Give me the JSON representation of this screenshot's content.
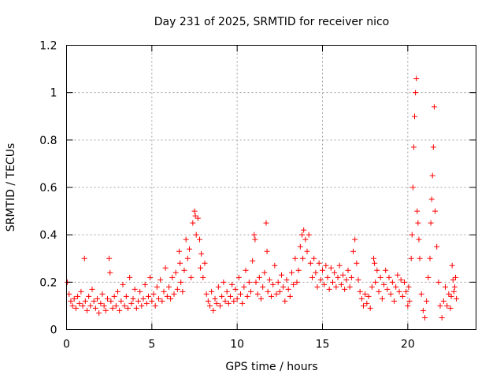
{
  "chart_data": {
    "type": "scatter",
    "title": "Day 231 of 2025, SRMTID for receiver nico",
    "xlabel": "GPS time / hours",
    "ylabel": "SRMTID / TECUs",
    "xlim": [
      0,
      24
    ],
    "ylim": [
      0,
      1.2
    ],
    "xticks": [
      0,
      5,
      10,
      15,
      20
    ],
    "yticks": [
      0,
      0.2,
      0.4,
      0.6,
      0.8,
      1,
      1.2
    ],
    "xtick_labels": [
      "0",
      "5",
      "10",
      "15",
      "20"
    ],
    "ytick_labels": [
      "0",
      "0.2",
      "0.4",
      "0.6",
      "0.8",
      "1",
      "1.2"
    ],
    "grid": true,
    "marker": "plus",
    "color": "#ff0000",
    "series": [
      {
        "name": "SRMTID",
        "points": [
          [
            0.05,
            0.2
          ],
          [
            0.15,
            0.15
          ],
          [
            0.25,
            0.12
          ],
          [
            0.35,
            0.1
          ],
          [
            0.45,
            0.13
          ],
          [
            0.55,
            0.09
          ],
          [
            0.65,
            0.14
          ],
          [
            0.75,
            0.11
          ],
          [
            0.85,
            0.16
          ],
          [
            0.95,
            0.1
          ],
          [
            1.05,
            0.3
          ],
          [
            1.1,
            0.12
          ],
          [
            1.2,
            0.08
          ],
          [
            1.3,
            0.14
          ],
          [
            1.4,
            0.1
          ],
          [
            1.5,
            0.17
          ],
          [
            1.6,
            0.12
          ],
          [
            1.7,
            0.09
          ],
          [
            1.8,
            0.13
          ],
          [
            1.9,
            0.07
          ],
          [
            2.0,
            0.11
          ],
          [
            2.1,
            0.15
          ],
          [
            2.2,
            0.1
          ],
          [
            2.3,
            0.08
          ],
          [
            2.4,
            0.13
          ],
          [
            2.5,
            0.3
          ],
          [
            2.55,
            0.24
          ],
          [
            2.6,
            0.12
          ],
          [
            2.7,
            0.09
          ],
          [
            2.8,
            0.14
          ],
          [
            2.9,
            0.1
          ],
          [
            3.0,
            0.16
          ],
          [
            3.1,
            0.08
          ],
          [
            3.2,
            0.12
          ],
          [
            3.3,
            0.19
          ],
          [
            3.4,
            0.1
          ],
          [
            3.5,
            0.14
          ],
          [
            3.6,
            0.09
          ],
          [
            3.7,
            0.22
          ],
          [
            3.8,
            0.11
          ],
          [
            3.9,
            0.13
          ],
          [
            4.0,
            0.17
          ],
          [
            4.1,
            0.09
          ],
          [
            4.2,
            0.12
          ],
          [
            4.3,
            0.16
          ],
          [
            4.4,
            0.1
          ],
          [
            4.5,
            0.13
          ],
          [
            4.6,
            0.19
          ],
          [
            4.7,
            0.11
          ],
          [
            4.8,
            0.14
          ],
          [
            4.9,
            0.22
          ],
          [
            5.0,
            0.12
          ],
          [
            5.1,
            0.15
          ],
          [
            5.2,
            0.1
          ],
          [
            5.3,
            0.18
          ],
          [
            5.4,
            0.13
          ],
          [
            5.5,
            0.21
          ],
          [
            5.6,
            0.12
          ],
          [
            5.7,
            0.16
          ],
          [
            5.8,
            0.26
          ],
          [
            5.9,
            0.14
          ],
          [
            6.0,
            0.18
          ],
          [
            6.1,
            0.13
          ],
          [
            6.2,
            0.22
          ],
          [
            6.3,
            0.15
          ],
          [
            6.4,
            0.24
          ],
          [
            6.5,
            0.17
          ],
          [
            6.6,
            0.33
          ],
          [
            6.65,
            0.28
          ],
          [
            6.7,
            0.2
          ],
          [
            6.8,
            0.16
          ],
          [
            6.9,
            0.25
          ],
          [
            7.0,
            0.38
          ],
          [
            7.1,
            0.3
          ],
          [
            7.2,
            0.34
          ],
          [
            7.3,
            0.22
          ],
          [
            7.4,
            0.45
          ],
          [
            7.5,
            0.5
          ],
          [
            7.55,
            0.48
          ],
          [
            7.6,
            0.4
          ],
          [
            7.7,
            0.47
          ],
          [
            7.8,
            0.38
          ],
          [
            7.85,
            0.26
          ],
          [
            7.9,
            0.32
          ],
          [
            8.0,
            0.22
          ],
          [
            8.1,
            0.28
          ],
          [
            8.2,
            0.15
          ],
          [
            8.3,
            0.12
          ],
          [
            8.4,
            0.1
          ],
          [
            8.5,
            0.16
          ],
          [
            8.6,
            0.08
          ],
          [
            8.7,
            0.13
          ],
          [
            8.8,
            0.11
          ],
          [
            8.9,
            0.18
          ],
          [
            9.0,
            0.1
          ],
          [
            9.1,
            0.14
          ],
          [
            9.2,
            0.2
          ],
          [
            9.3,
            0.12
          ],
          [
            9.4,
            0.16
          ],
          [
            9.5,
            0.11
          ],
          [
            9.6,
            0.14
          ],
          [
            9.7,
            0.19
          ],
          [
            9.8,
            0.12
          ],
          [
            9.9,
            0.17
          ],
          [
            10.0,
            0.13
          ],
          [
            10.1,
            0.22
          ],
          [
            10.2,
            0.15
          ],
          [
            10.3,
            0.11
          ],
          [
            10.4,
            0.18
          ],
          [
            10.5,
            0.25
          ],
          [
            10.6,
            0.14
          ],
          [
            10.7,
            0.2
          ],
          [
            10.8,
            0.16
          ],
          [
            10.9,
            0.29
          ],
          [
            11.0,
            0.4
          ],
          [
            11.05,
            0.38
          ],
          [
            11.1,
            0.2
          ],
          [
            11.2,
            0.15
          ],
          [
            11.3,
            0.22
          ],
          [
            11.4,
            0.13
          ],
          [
            11.5,
            0.18
          ],
          [
            11.6,
            0.24
          ],
          [
            11.7,
            0.45
          ],
          [
            11.75,
            0.33
          ],
          [
            11.8,
            0.16
          ],
          [
            11.9,
            0.21
          ],
          [
            12.0,
            0.14
          ],
          [
            12.1,
            0.19
          ],
          [
            12.2,
            0.27
          ],
          [
            12.3,
            0.15
          ],
          [
            12.4,
            0.2
          ],
          [
            12.5,
            0.16
          ],
          [
            12.6,
            0.23
          ],
          [
            12.7,
            0.18
          ],
          [
            12.8,
            0.12
          ],
          [
            12.9,
            0.21
          ],
          [
            13.0,
            0.17
          ],
          [
            13.1,
            0.14
          ],
          [
            13.2,
            0.24
          ],
          [
            13.3,
            0.19
          ],
          [
            13.4,
            0.3
          ],
          [
            13.5,
            0.2
          ],
          [
            13.6,
            0.25
          ],
          [
            13.7,
            0.35
          ],
          [
            13.8,
            0.4
          ],
          [
            13.85,
            0.3
          ],
          [
            13.9,
            0.42
          ],
          [
            14.0,
            0.38
          ],
          [
            14.1,
            0.33
          ],
          [
            14.2,
            0.4
          ],
          [
            14.3,
            0.28
          ],
          [
            14.4,
            0.22
          ],
          [
            14.5,
            0.3
          ],
          [
            14.6,
            0.24
          ],
          [
            14.7,
            0.18
          ],
          [
            14.8,
            0.28
          ],
          [
            14.9,
            0.21
          ],
          [
            15.0,
            0.25
          ],
          [
            15.1,
            0.19
          ],
          [
            15.2,
            0.27
          ],
          [
            15.3,
            0.22
          ],
          [
            15.4,
            0.17
          ],
          [
            15.5,
            0.26
          ],
          [
            15.6,
            0.2
          ],
          [
            15.7,
            0.24
          ],
          [
            15.8,
            0.18
          ],
          [
            15.9,
            0.22
          ],
          [
            16.0,
            0.27
          ],
          [
            16.1,
            0.19
          ],
          [
            16.2,
            0.23
          ],
          [
            16.3,
            0.17
          ],
          [
            16.4,
            0.21
          ],
          [
            16.5,
            0.25
          ],
          [
            16.6,
            0.18
          ],
          [
            16.7,
            0.22
          ],
          [
            16.8,
            0.33
          ],
          [
            16.9,
            0.38
          ],
          [
            17.0,
            0.28
          ],
          [
            17.1,
            0.21
          ],
          [
            17.2,
            0.16
          ],
          [
            17.3,
            0.13
          ],
          [
            17.4,
            0.1
          ],
          [
            17.5,
            0.15
          ],
          [
            17.6,
            0.11
          ],
          [
            17.7,
            0.14
          ],
          [
            17.8,
            0.09
          ],
          [
            17.9,
            0.18
          ],
          [
            18.0,
            0.3
          ],
          [
            18.05,
            0.28
          ],
          [
            18.1,
            0.2
          ],
          [
            18.2,
            0.25
          ],
          [
            18.3,
            0.16
          ],
          [
            18.4,
            0.22
          ],
          [
            18.5,
            0.13
          ],
          [
            18.6,
            0.19
          ],
          [
            18.7,
            0.25
          ],
          [
            18.8,
            0.17
          ],
          [
            18.9,
            0.22
          ],
          [
            19.0,
            0.15
          ],
          [
            19.1,
            0.2
          ],
          [
            19.2,
            0.12
          ],
          [
            19.3,
            0.18
          ],
          [
            19.4,
            0.23
          ],
          [
            19.5,
            0.16
          ],
          [
            19.6,
            0.21
          ],
          [
            19.7,
            0.14
          ],
          [
            19.8,
            0.2
          ],
          [
            19.9,
            0.16
          ],
          [
            20.0,
            0.1
          ],
          [
            20.05,
            0.18
          ],
          [
            20.1,
            0.12
          ],
          [
            20.2,
            0.3
          ],
          [
            20.25,
            0.4
          ],
          [
            20.3,
            0.6
          ],
          [
            20.35,
            0.77
          ],
          [
            20.4,
            0.9
          ],
          [
            20.45,
            1.0
          ],
          [
            20.5,
            1.06
          ],
          [
            20.55,
            0.5
          ],
          [
            20.6,
            0.45
          ],
          [
            20.65,
            0.38
          ],
          [
            20.7,
            0.3
          ],
          [
            20.8,
            0.15
          ],
          [
            20.9,
            0.08
          ],
          [
            21.0,
            0.05
          ],
          [
            21.1,
            0.12
          ],
          [
            21.2,
            0.22
          ],
          [
            21.3,
            0.3
          ],
          [
            21.35,
            0.45
          ],
          [
            21.4,
            0.55
          ],
          [
            21.45,
            0.65
          ],
          [
            21.5,
            0.77
          ],
          [
            21.55,
            0.94
          ],
          [
            21.6,
            0.5
          ],
          [
            21.7,
            0.35
          ],
          [
            21.8,
            0.2
          ],
          [
            21.9,
            0.1
          ],
          [
            22.0,
            0.05
          ],
          [
            22.1,
            0.12
          ],
          [
            22.2,
            0.18
          ],
          [
            22.3,
            0.1
          ],
          [
            22.4,
            0.15
          ],
          [
            22.5,
            0.09
          ],
          [
            22.6,
            0.27
          ],
          [
            22.7,
            0.16
          ],
          [
            22.8,
            0.22
          ],
          [
            22.85,
            0.13
          ],
          [
            22.75,
            0.18
          ],
          [
            22.65,
            0.21
          ],
          [
            22.55,
            0.14
          ]
        ]
      }
    ]
  }
}
